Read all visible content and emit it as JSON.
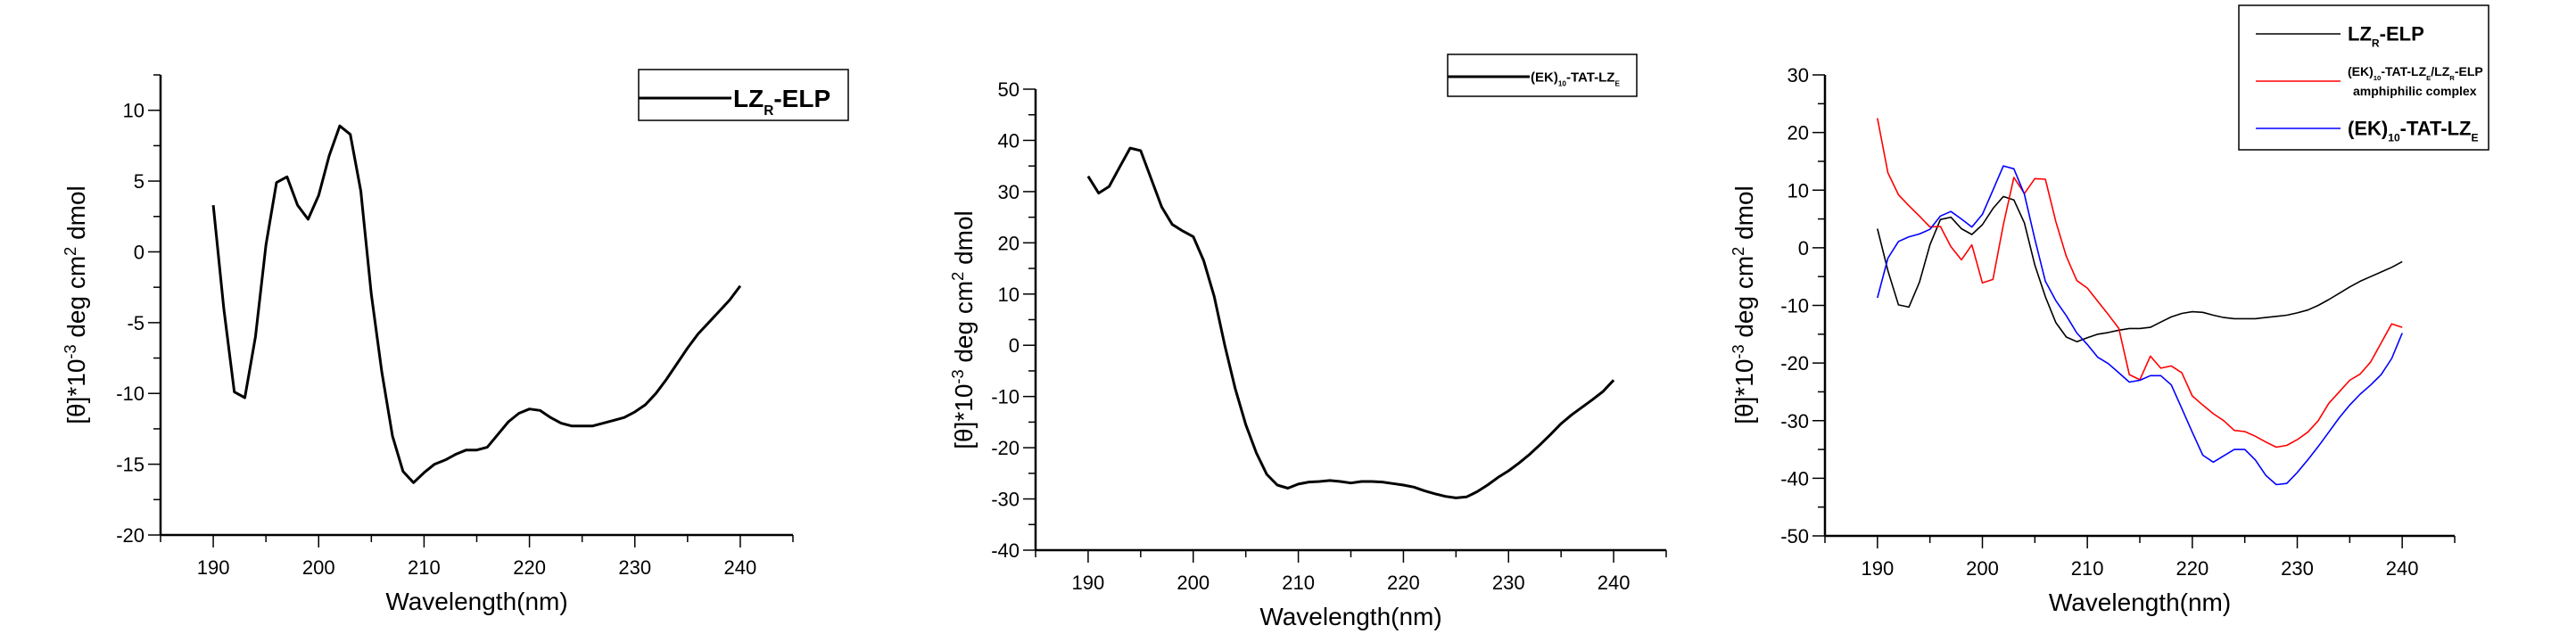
{
  "chart_data": [
    {
      "type": "line",
      "title": "",
      "xlabel": "Wavelength(nm)",
      "ylabel_parts": [
        {
          "text": "[θ]*10",
          "style": "normal"
        },
        {
          "text": "-3",
          "style": "sup"
        },
        {
          "text": " deg cm",
          "style": "normal"
        },
        {
          "text": "2",
          "style": "sup"
        },
        {
          "text": " dmol",
          "style": "normal"
        }
      ],
      "xlim": [
        185,
        245
      ],
      "ylim": [
        -20,
        12.5
      ],
      "xticks": [
        190,
        200,
        210,
        220,
        230,
        240
      ],
      "yticks": [
        -20,
        -15,
        -10,
        -5,
        0,
        5,
        10
      ],
      "grid": false,
      "legend_position": "top-right",
      "x": [
        190,
        191,
        192,
        193,
        194,
        195,
        196,
        197,
        198,
        199,
        200,
        201,
        202,
        203,
        204,
        205,
        206,
        207,
        208,
        209,
        210,
        211,
        212,
        213,
        214,
        215,
        216,
        217,
        218,
        219,
        220,
        221,
        222,
        223,
        224,
        225,
        226,
        227,
        228,
        229,
        230,
        231,
        232,
        233,
        234,
        235,
        236,
        237,
        238,
        239,
        240
      ],
      "series": [
        {
          "color": "#000000",
          "legend_lines": [
            [
              {
                "text": "LZ",
                "style": "normal"
              },
              {
                "text": "R",
                "style": "sub"
              },
              {
                "text": "-ELP",
                "style": "normal"
              }
            ]
          ],
          "y": [
            3.3,
            -4,
            -9.9,
            -10.3,
            -6,
            0.5,
            4.9,
            5.3,
            3.3,
            2.3,
            4,
            6.8,
            8.9,
            8.3,
            4.3,
            -3,
            -8.5,
            -13,
            -15.5,
            -16.3,
            -15.6,
            -15,
            -14.7,
            -14.3,
            -14,
            -14,
            -13.8,
            -12.9,
            -12,
            -11.4,
            -11.1,
            -11.2,
            -11.7,
            -12.1,
            -12.3,
            -12.3,
            -12.3,
            -12.1,
            -11.9,
            -11.7,
            -11.3,
            -10.8,
            -10,
            -9,
            -7.9,
            -6.8,
            -5.8,
            -5,
            -4.2,
            -3.4,
            -2.4
          ]
        }
      ]
    },
    {
      "type": "line",
      "title": "",
      "xlabel": "Wavelength(nm)",
      "ylabel_parts": [
        {
          "text": "[θ]*10",
          "style": "normal"
        },
        {
          "text": "-3",
          "style": "sup"
        },
        {
          "text": " deg cm",
          "style": "normal"
        },
        {
          "text": "2",
          "style": "sup"
        },
        {
          "text": " dmol",
          "style": "normal"
        }
      ],
      "xlim": [
        185,
        245
      ],
      "ylim": [
        -40,
        50
      ],
      "xticks": [
        190,
        200,
        210,
        220,
        230,
        240
      ],
      "yticks": [
        -40,
        -30,
        -20,
        -10,
        0,
        10,
        20,
        30,
        40,
        50
      ],
      "grid": false,
      "legend_position": "top-right",
      "x": [
        190,
        191,
        192,
        193,
        194,
        195,
        196,
        197,
        198,
        199,
        200,
        201,
        202,
        203,
        204,
        205,
        206,
        207,
        208,
        209,
        210,
        211,
        212,
        213,
        214,
        215,
        216,
        217,
        218,
        219,
        220,
        221,
        222,
        223,
        224,
        225,
        226,
        227,
        228,
        229,
        230,
        231,
        232,
        233,
        234,
        235,
        236,
        237,
        238,
        239,
        240
      ],
      "series": [
        {
          "color": "#000000",
          "legend_lines": [
            [
              {
                "text": "(EK)",
                "style": "normal"
              },
              {
                "text": "10",
                "style": "sub"
              },
              {
                "text": "-TAT-LZ",
                "style": "normal"
              },
              {
                "text": "E",
                "style": "sub"
              }
            ]
          ],
          "y": [
            33,
            29.7,
            31,
            34.8,
            38.5,
            38,
            32.5,
            27,
            23.6,
            22.3,
            21.2,
            16.5,
            9.5,
            0,
            -8.5,
            -15.5,
            -21,
            -25.2,
            -27.3,
            -27.9,
            -27.1,
            -26.7,
            -26.6,
            -26.4,
            -26.6,
            -26.9,
            -26.6,
            -26.6,
            -26.7,
            -27,
            -27.3,
            -27.7,
            -28.4,
            -29,
            -29.5,
            -29.8,
            -29.6,
            -28.6,
            -27.3,
            -25.8,
            -24.5,
            -23,
            -21.3,
            -19.4,
            -17.4,
            -15.3,
            -13.6,
            -12.1,
            -10.6,
            -9,
            -6.8
          ]
        }
      ]
    },
    {
      "type": "line",
      "title": "",
      "xlabel": "Wavelength(nm)",
      "ylabel_parts": [
        {
          "text": "[θ]*10",
          "style": "normal"
        },
        {
          "text": "-3",
          "style": "sup"
        },
        {
          "text": " deg cm",
          "style": "normal"
        },
        {
          "text": "2",
          "style": "sup"
        },
        {
          "text": " dmol",
          "style": "normal"
        }
      ],
      "xlim": [
        185,
        245
      ],
      "ylim": [
        -50,
        30
      ],
      "xticks": [
        190,
        200,
        210,
        220,
        230,
        240
      ],
      "yticks": [
        -50,
        -40,
        -30,
        -20,
        -10,
        0,
        10,
        20,
        30
      ],
      "grid": false,
      "legend_position": "top-right",
      "x": [
        190,
        191,
        192,
        193,
        194,
        195,
        196,
        197,
        198,
        199,
        200,
        201,
        202,
        203,
        204,
        205,
        206,
        207,
        208,
        209,
        210,
        211,
        212,
        213,
        214,
        215,
        216,
        217,
        218,
        219,
        220,
        221,
        222,
        223,
        224,
        225,
        226,
        227,
        228,
        229,
        230,
        231,
        232,
        233,
        234,
        235,
        236,
        237,
        238,
        239,
        240
      ],
      "series": [
        {
          "color": "#000000",
          "legend_lines": [
            [
              {
                "text": "LZ",
                "style": "normal"
              },
              {
                "text": "R",
                "style": "sub"
              },
              {
                "text": "-ELP",
                "style": "normal"
              }
            ]
          ],
          "y": [
            3.3,
            -4,
            -9.9,
            -10.3,
            -6,
            0.5,
            4.9,
            5.3,
            3.3,
            2.3,
            4,
            6.8,
            8.9,
            8.3,
            4.3,
            -3,
            -8.5,
            -13,
            -15.5,
            -16.3,
            -15.6,
            -15,
            -14.7,
            -14.3,
            -14,
            -14,
            -13.8,
            -12.9,
            -12,
            -11.4,
            -11.1,
            -11.2,
            -11.7,
            -12.1,
            -12.3,
            -12.3,
            -12.3,
            -12.1,
            -11.9,
            -11.7,
            -11.3,
            -10.8,
            -10,
            -9,
            -7.9,
            -6.8,
            -5.8,
            -5,
            -4.2,
            -3.4,
            -2.4
          ]
        },
        {
          "color": "#ff0000",
          "legend_lines": [
            [
              {
                "text": "(EK)",
                "style": "normal"
              },
              {
                "text": "10",
                "style": "sub"
              },
              {
                "text": "-TAT-LZ",
                "style": "normal"
              },
              {
                "text": "E",
                "style": "sub"
              },
              {
                "text": "/LZ",
                "style": "normal"
              },
              {
                "text": "R",
                "style": "sub"
              },
              {
                "text": "-ELP",
                "style": "normal"
              }
            ],
            [
              {
                "text": "amphiphilic complex",
                "style": "normal"
              }
            ]
          ],
          "y": [
            22.5,
            13,
            9.2,
            7.3,
            5.5,
            3.6,
            3.7,
            0.2,
            -2.1,
            0.5,
            -6.1,
            -5.5,
            4,
            12.2,
            9.4,
            12,
            11.9,
            4.5,
            -1.5,
            -5.7,
            -7,
            -9.3,
            -11.6,
            -14,
            -22,
            -22.9,
            -18.8,
            -20.9,
            -20.5,
            -21.7,
            -25.7,
            -27.3,
            -28.8,
            -30,
            -31.7,
            -31.9,
            -32.7,
            -33.7,
            -34.6,
            -34.3,
            -33.3,
            -32,
            -30,
            -27,
            -25,
            -23,
            -21.9,
            -19.8,
            -16.5,
            -13.2,
            -13.8
          ]
        },
        {
          "color": "#0000ff",
          "legend_lines": [
            [
              {
                "text": "(EK)",
                "style": "normal"
              },
              {
                "text": "10",
                "style": "sub"
              },
              {
                "text": "-TAT-LZ",
                "style": "normal"
              },
              {
                "text": "E",
                "style": "sub"
              }
            ]
          ],
          "y": [
            -8.7,
            -1.8,
            1.1,
            1.9,
            2.4,
            3.2,
            5.5,
            6.3,
            5,
            3.6,
            5.8,
            10,
            14.2,
            13.7,
            9.3,
            1.5,
            -5.8,
            -9.2,
            -11.8,
            -14.8,
            -16.8,
            -19,
            -20.1,
            -21.7,
            -23.3,
            -23,
            -22.2,
            -22.2,
            -23.8,
            -27.9,
            -32,
            -36,
            -37.2,
            -36.1,
            -35,
            -35,
            -36.8,
            -39.5,
            -41.1,
            -40.9,
            -39,
            -36.8,
            -34.5,
            -32,
            -29.5,
            -27.3,
            -25.4,
            -23.8,
            -22,
            -19.2,
            -14.8
          ]
        }
      ]
    }
  ]
}
